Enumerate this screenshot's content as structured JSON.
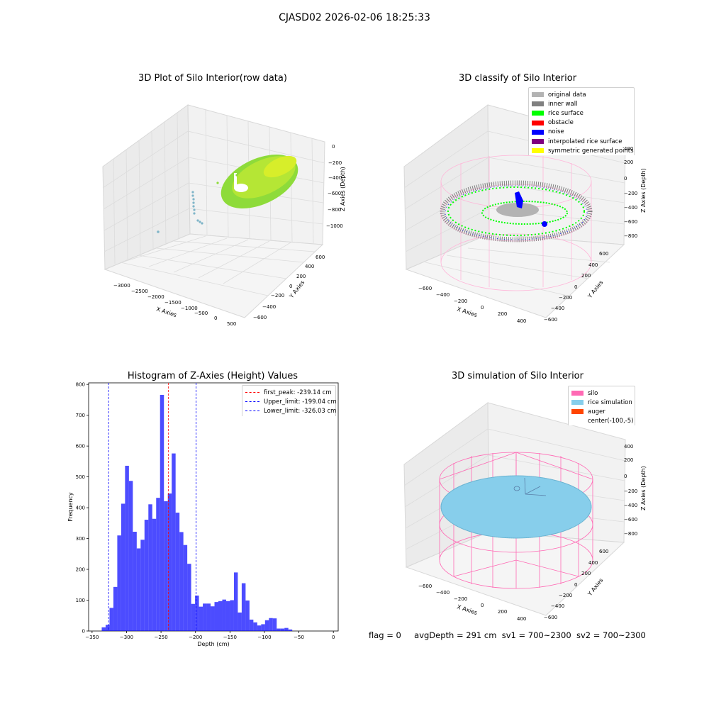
{
  "suptitle": "CJASD02 2026-02-06 18:25:33",
  "plots": {
    "raw": {
      "title": "3D Plot of Silo Interior(row data)",
      "x_label": "X Axies",
      "y_label": "Y Axies",
      "z_label": "Z Axies (Depth)",
      "x_ticks": [
        "−3000",
        "−2500",
        "−2000",
        "−1500",
        "−1000",
        "−500",
        "0",
        "500"
      ],
      "y_ticks": [
        "600",
        "400",
        "200",
        "0",
        "−200",
        "−400",
        "−600"
      ],
      "z_ticks": [
        "0",
        "−200",
        "−400",
        "−600",
        "−800",
        "−1000"
      ]
    },
    "classify": {
      "title": "3D classify of Silo Interior",
      "x_label": "X Axies",
      "y_label": "Y Axies",
      "z_label": "Z Axies (Depth)",
      "x_ticks": [
        "−600",
        "−400",
        "−200",
        "0",
        "200",
        "400"
      ],
      "y_ticks": [
        "600",
        "400",
        "200",
        "0",
        "−200",
        "−400",
        "−600"
      ],
      "z_ticks": [
        "400",
        "200",
        "0",
        "−200",
        "−400",
        "−600",
        "−800"
      ],
      "legend": [
        {
          "label": "original data",
          "color": "#b3b3b3"
        },
        {
          "label": "inner wall",
          "color": "#808080"
        },
        {
          "label": "rice surface",
          "color": "#00ff00"
        },
        {
          "label": "obstacle",
          "color": "#ff0000"
        },
        {
          "label": "noise",
          "color": "#0000ff"
        },
        {
          "label": "interpolated rice surface",
          "color": "#800080"
        },
        {
          "label": "symmetric generated points",
          "color": "#ffff00"
        }
      ]
    },
    "simulation": {
      "title": "3D simulation of Silo Interior",
      "x_label": "X Axies",
      "y_label": "Y Axies",
      "z_label": "Z Axies (Depth)",
      "x_ticks": [
        "−600",
        "−400",
        "−200",
        "0",
        "200",
        "400"
      ],
      "y_ticks": [
        "600",
        "400",
        "200",
        "0",
        "−200",
        "−400",
        "−600"
      ],
      "z_ticks": [
        "400",
        "200",
        "0",
        "−200",
        "−400",
        "−600",
        "−800"
      ],
      "legend": [
        {
          "label": "silo",
          "color": "#ff69b4"
        },
        {
          "label": "rice simulation",
          "color": "#87ceeb"
        },
        {
          "label": "auger",
          "color": "#ff4500"
        },
        {
          "label": "center(-100,-5)",
          "color": "none"
        }
      ]
    }
  },
  "chart_data": {
    "type": "bar",
    "title": "Histogram of Z-Axies (Height) Values",
    "xlabel": "Depth (cm)",
    "ylabel": "Frequency",
    "xlim": [
      -355,
      7
    ],
    "ylim": [
      0,
      805
    ],
    "x_ticks": [
      -350,
      -300,
      -250,
      -200,
      -150,
      -100,
      -50,
      0
    ],
    "y_ticks": [
      0,
      100,
      200,
      300,
      400,
      500,
      600,
      700,
      800
    ],
    "bin_start": -336,
    "bin_width": 5.64,
    "values": [
      12,
      20,
      75,
      143,
      310,
      413,
      536,
      487,
      322,
      268,
      296,
      361,
      411,
      364,
      432,
      766,
      421,
      446,
      576,
      384,
      321,
      279,
      218,
      88,
      115,
      79,
      89,
      89,
      80,
      94,
      97,
      102,
      97,
      100,
      190,
      60,
      155,
      99,
      37,
      28,
      18,
      22,
      35,
      42,
      41,
      8,
      8,
      10,
      5
    ],
    "bar_color": "#0000ff",
    "lines": [
      {
        "label": "first_peak: -239.14 cm",
        "x": -239.14,
        "color": "#ff0000"
      },
      {
        "label": "Upper_limit: -199.04 cm",
        "x": -199.04,
        "color": "#0000ff"
      },
      {
        "label": "Lower_limit: -326.03 cm",
        "x": -326.03,
        "color": "#0000ff"
      }
    ],
    "legend_position": "top-right"
  },
  "footer": {
    "flag": "flag = 0",
    "avg_depth": "avgDepth = 291 cm",
    "sv1": "sv1 = 700~2300",
    "sv2": "sv2 = 700~2300"
  }
}
